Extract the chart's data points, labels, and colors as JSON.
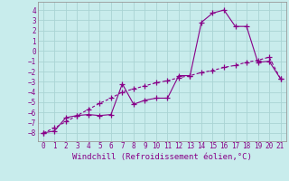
{
  "title": "",
  "xlabel": "Windchill (Refroidissement éolien,°C)",
  "ylabel": "",
  "background_color": "#c8ecec",
  "grid_color": "#aad4d4",
  "line_color": "#880088",
  "x_line1": [
    0,
    1,
    2,
    3,
    4,
    5,
    6,
    7,
    8,
    9,
    10,
    11,
    12,
    13,
    14,
    15,
    16,
    17,
    18,
    19,
    20,
    21
  ],
  "y_line1": [
    -8,
    -7.8,
    -6.5,
    -6.3,
    -6.2,
    -6.3,
    -6.2,
    -3.2,
    -5.2,
    -4.8,
    -4.6,
    -4.6,
    -2.4,
    -2.4,
    2.8,
    3.7,
    4.0,
    2.4,
    2.4,
    -1.1,
    -1.0,
    -2.7
  ],
  "x_line2": [
    0,
    1,
    2,
    3,
    4,
    5,
    6,
    7,
    8,
    9,
    10,
    11,
    12,
    13,
    14,
    15,
    16,
    17,
    18,
    19,
    20,
    21
  ],
  "y_line2": [
    -8,
    -7.5,
    -6.9,
    -6.3,
    -5.7,
    -5.1,
    -4.6,
    -4.0,
    -3.7,
    -3.4,
    -3.1,
    -2.9,
    -2.6,
    -2.4,
    -2.1,
    -1.9,
    -1.6,
    -1.4,
    -1.1,
    -0.9,
    -0.6,
    -2.7
  ],
  "xlim": [
    -0.5,
    21.5
  ],
  "ylim": [
    -8.8,
    4.8
  ],
  "yticks": [
    -8,
    -7,
    -6,
    -5,
    -4,
    -3,
    -2,
    -1,
    0,
    1,
    2,
    3,
    4
  ],
  "xticks": [
    0,
    1,
    2,
    3,
    4,
    5,
    6,
    7,
    8,
    9,
    10,
    11,
    12,
    13,
    14,
    15,
    16,
    17,
    18,
    19,
    20,
    21
  ],
  "marker": "+",
  "markersize": 4,
  "linewidth": 0.8,
  "font_color": "#880088",
  "xlabel_fontsize": 6.5,
  "tick_fontsize": 5.5
}
